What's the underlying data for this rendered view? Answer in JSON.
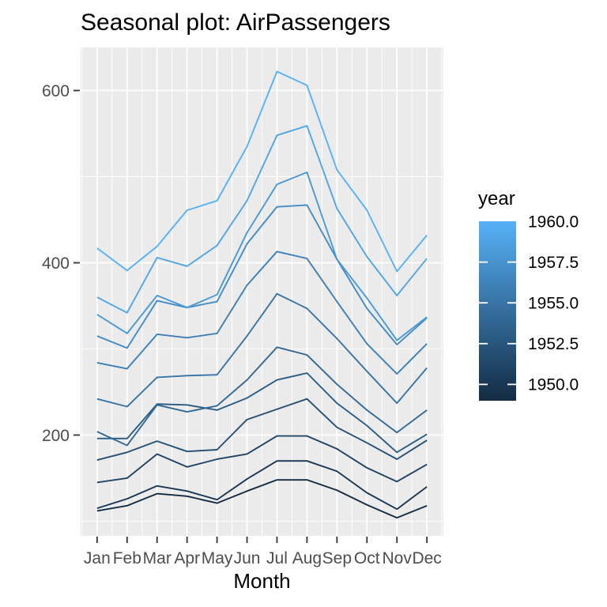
{
  "chart_data": {
    "type": "line",
    "title": "Seasonal plot: AirPassengers",
    "xlabel": "Month",
    "ylabel": "",
    "categories": [
      "Jan",
      "Feb",
      "Mar",
      "Apr",
      "May",
      "Jun",
      "Jul",
      "Aug",
      "Sep",
      "Oct",
      "Nov",
      "Dec"
    ],
    "series": [
      {
        "name": "1949",
        "year": 1949,
        "values": [
          112,
          118,
          132,
          129,
          121,
          135,
          148,
          148,
          136,
          119,
          104,
          118
        ]
      },
      {
        "name": "1950",
        "year": 1950,
        "values": [
          115,
          126,
          141,
          135,
          125,
          149,
          170,
          170,
          158,
          133,
          114,
          140
        ]
      },
      {
        "name": "1951",
        "year": 1951,
        "values": [
          145,
          150,
          178,
          163,
          172,
          178,
          199,
          199,
          184,
          162,
          146,
          166
        ]
      },
      {
        "name": "1952",
        "year": 1952,
        "values": [
          171,
          180,
          193,
          181,
          183,
          218,
          230,
          242,
          209,
          191,
          172,
          194
        ]
      },
      {
        "name": "1953",
        "year": 1953,
        "values": [
          196,
          196,
          236,
          235,
          229,
          243,
          264,
          272,
          237,
          211,
          180,
          201
        ]
      },
      {
        "name": "1954",
        "year": 1954,
        "values": [
          204,
          188,
          235,
          227,
          234,
          264,
          302,
          293,
          259,
          229,
          203,
          229
        ]
      },
      {
        "name": "1955",
        "year": 1955,
        "values": [
          242,
          233,
          267,
          269,
          270,
          315,
          364,
          347,
          312,
          274,
          237,
          278
        ]
      },
      {
        "name": "1956",
        "year": 1956,
        "values": [
          284,
          277,
          317,
          313,
          318,
          374,
          413,
          405,
          355,
          306,
          271,
          306
        ]
      },
      {
        "name": "1957",
        "year": 1957,
        "values": [
          315,
          301,
          356,
          348,
          355,
          422,
          465,
          467,
          404,
          347,
          305,
          336
        ]
      },
      {
        "name": "1958",
        "year": 1958,
        "values": [
          340,
          318,
          362,
          348,
          363,
          435,
          491,
          505,
          404,
          359,
          310,
          337
        ]
      },
      {
        "name": "1959",
        "year": 1959,
        "values": [
          360,
          342,
          406,
          396,
          420,
          472,
          548,
          559,
          463,
          407,
          362,
          405
        ]
      },
      {
        "name": "1960",
        "year": 1960,
        "values": [
          417,
          391,
          419,
          461,
          472,
          535,
          622,
          606,
          508,
          461,
          390,
          432
        ]
      }
    ],
    "y_ticks": {
      "values": [
        200,
        400,
        600
      ],
      "labels": [
        "200",
        "400",
        "600"
      ]
    },
    "y_minor": [
      100,
      300,
      500
    ],
    "ylim": [
      83,
      650
    ],
    "xlim": [
      0.45,
      12.55
    ],
    "grid": true,
    "legend": {
      "position": "right",
      "style": "colorbar",
      "title": "year",
      "range": [
        1949,
        1960
      ],
      "ticks": [
        {
          "value": 1960.0,
          "label": "1960.0"
        },
        {
          "value": 1957.5,
          "label": "1957.5"
        },
        {
          "value": 1955.0,
          "label": "1955.0"
        },
        {
          "value": 1952.5,
          "label": "1952.5"
        },
        {
          "value": 1950.0,
          "label": "1950.0"
        }
      ],
      "low_color": "#132B43",
      "high_color": "#56B1F7"
    },
    "colors": {
      "plot_bg": "#FFFFFF",
      "panel_bg": "#EBEBEB",
      "grid": "#FFFFFF",
      "axis_text": "#4D4D4D",
      "tick_marks": "#333333",
      "title": "#000000"
    }
  }
}
